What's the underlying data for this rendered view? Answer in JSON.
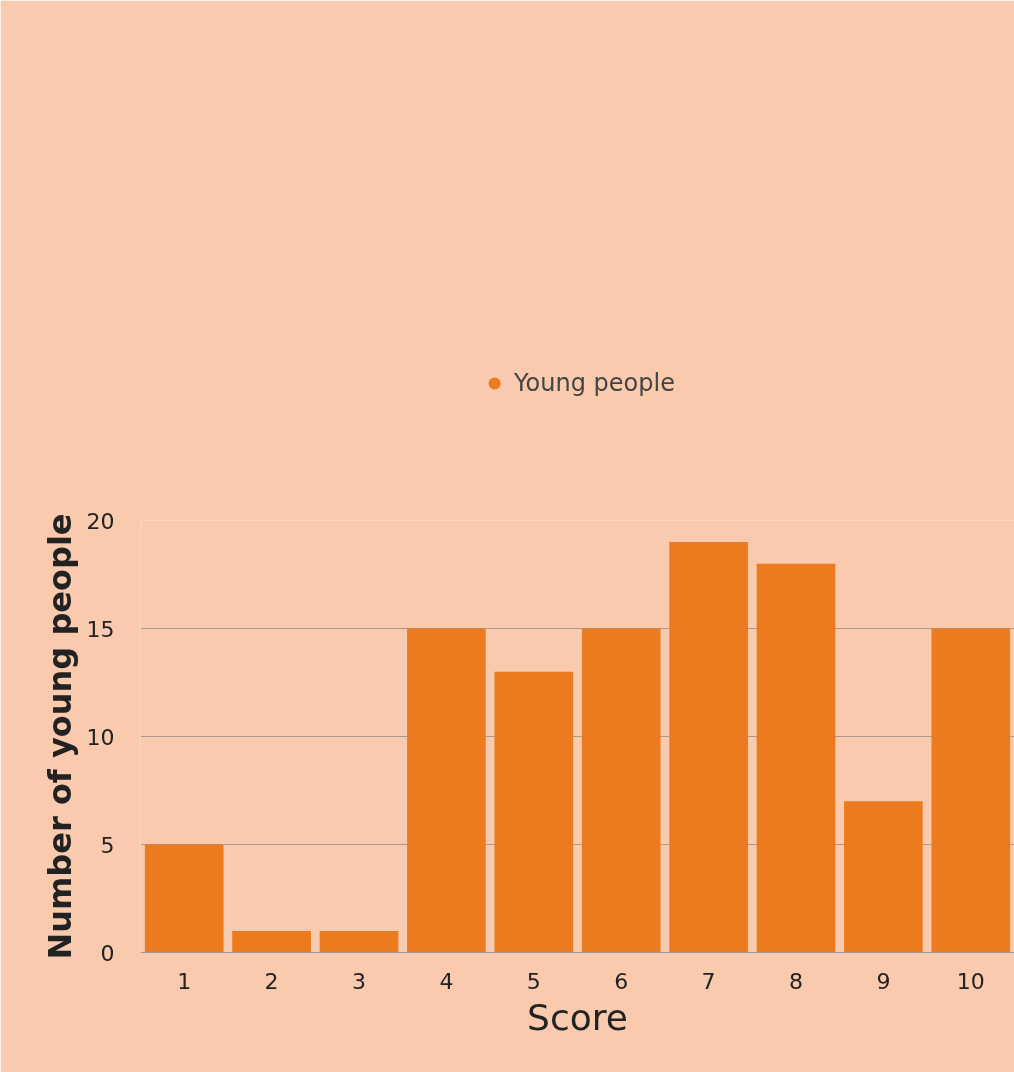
{
  "chart_data": {
    "type": "bar",
    "xlabel": "Score",
    "ylabel": "Number of young people",
    "categories": [
      "1",
      "2",
      "3",
      "4",
      "5",
      "6",
      "7",
      "8",
      "9",
      "10"
    ],
    "series": [
      {
        "name": "Young people",
        "color": "#ec7a1f",
        "values": [
          5,
          1,
          1,
          15,
          13,
          15,
          19,
          18,
          7,
          15
        ]
      }
    ],
    "ylim": [
      0,
      20
    ],
    "yticks": [
      0,
      5,
      10,
      15,
      20
    ],
    "grid": "y",
    "legend": "top"
  }
}
